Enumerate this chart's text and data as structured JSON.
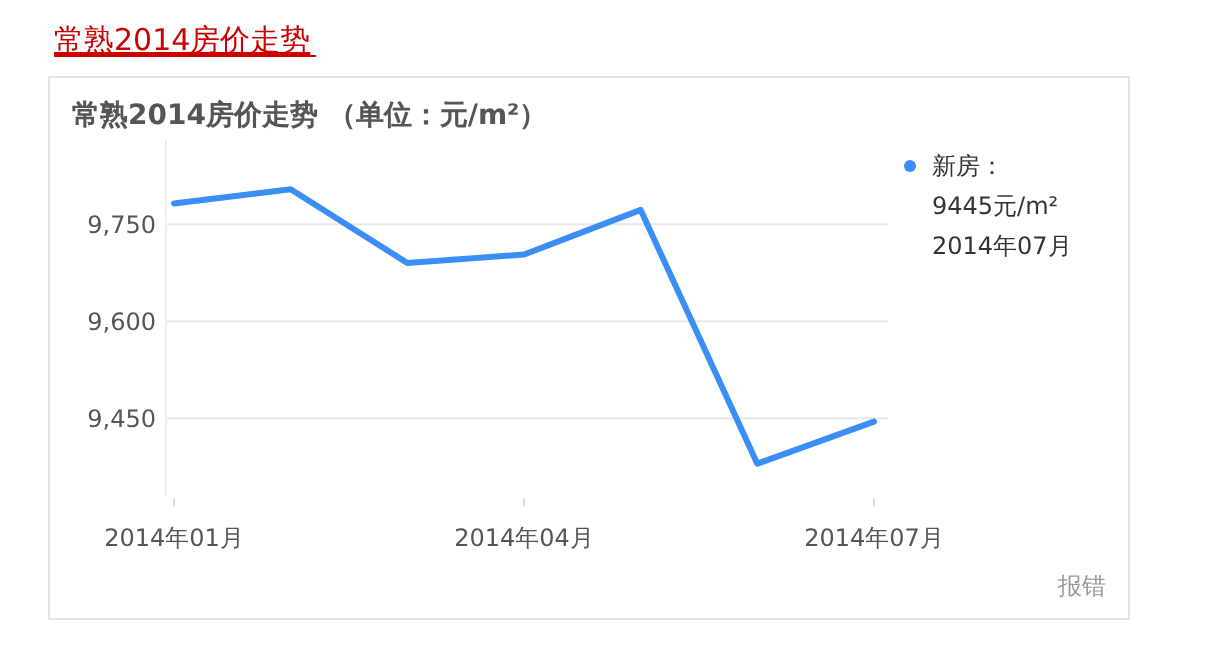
{
  "chart_data": {
    "type": "line",
    "title": "常熟2014房价走势",
    "subtitle": "常熟2014房价走势 （单位：元/m²）",
    "categories": [
      "2014年01月",
      null,
      null,
      "2014年04月",
      null,
      null,
      "2014年07月"
    ],
    "series": [
      {
        "name": "新房：",
        "color": "#3a8ef6",
        "values": [
          9782,
          9804,
          9690,
          9703,
          9772,
          9380,
          9445
        ]
      }
    ],
    "ylim": [
      9330,
      9880
    ],
    "yticks": [
      {
        "value": 9450,
        "label": "9,450"
      },
      {
        "value": 9600,
        "label": "9,600"
      },
      {
        "value": 9750,
        "label": "9,750"
      }
    ],
    "grid": "y",
    "legend": "right",
    "marker": "none",
    "annotations": [
      "9445元/m²",
      "2014年07月",
      "报错"
    ]
  }
}
